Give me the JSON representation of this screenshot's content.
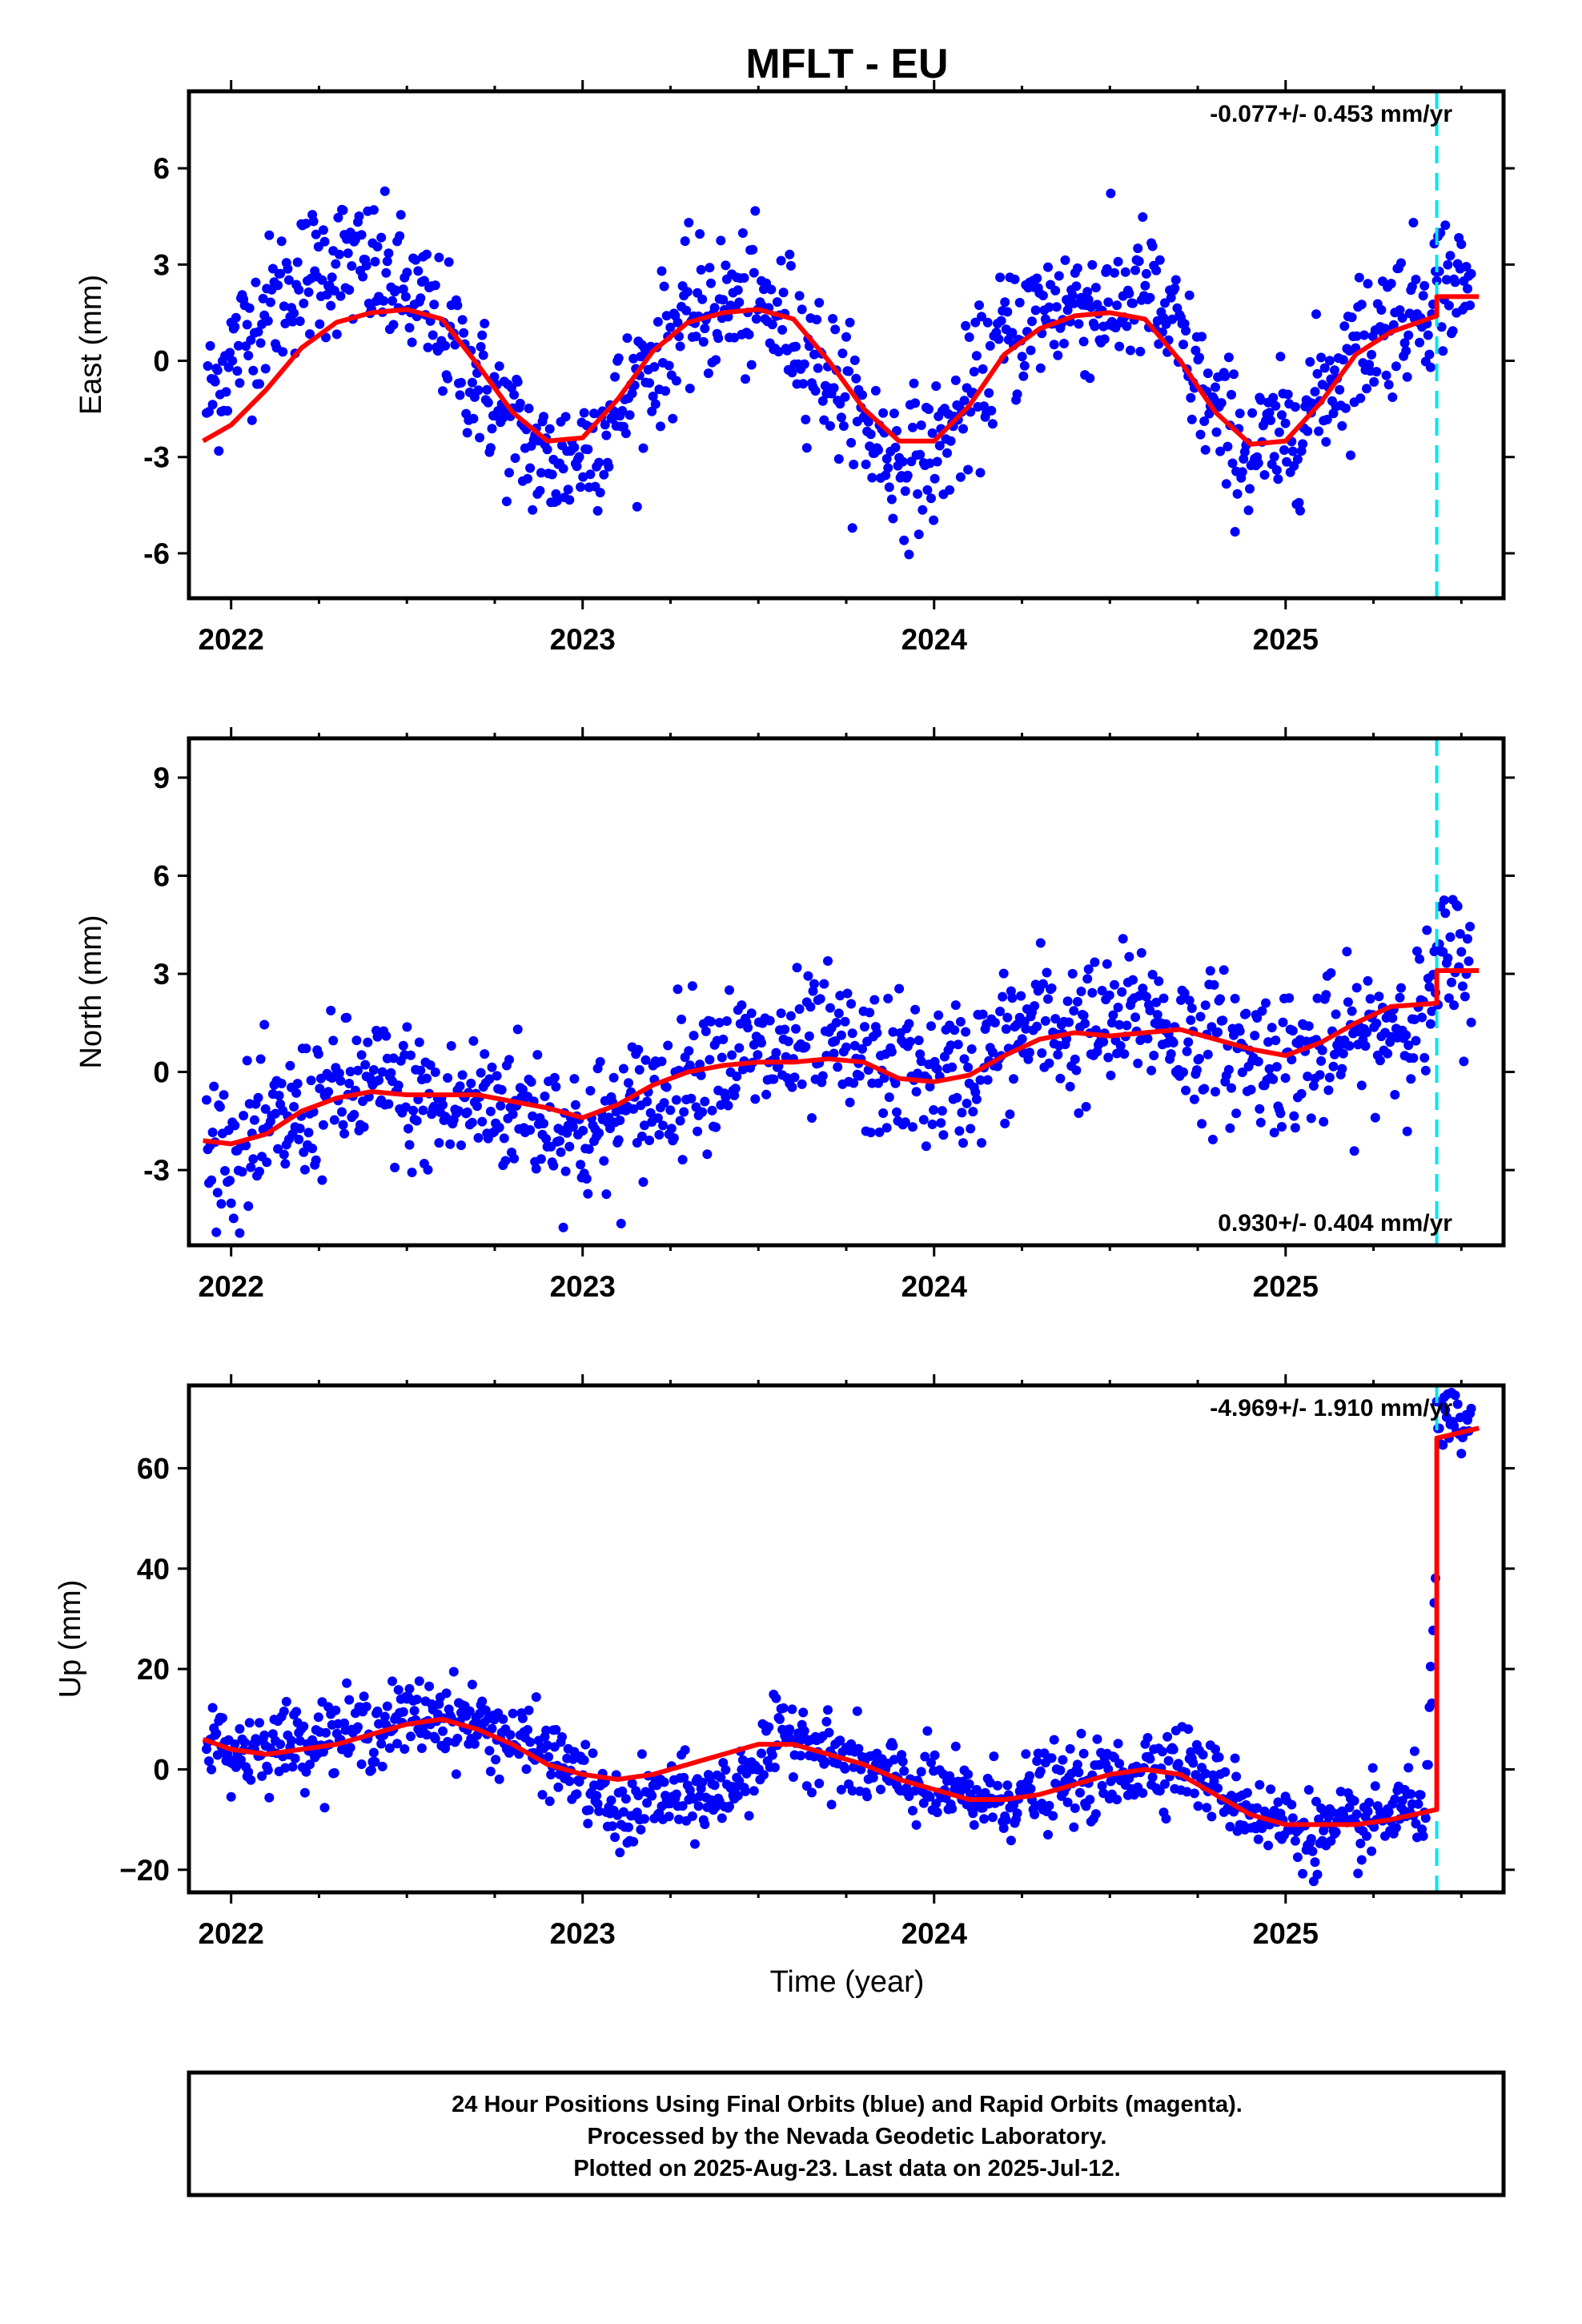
{
  "title": "MFLT - EU",
  "xlabel": "Time (year)",
  "caption": {
    "line1": "24 Hour Positions Using Final Orbits (blue) and Rapid Orbits (magenta).",
    "line2": "Processed by the Nevada Geodetic Laboratory.",
    "line3": "Plotted on 2025-Aug-23. Last data on 2025-Jul-12."
  },
  "colors": {
    "points": "#0000ff",
    "fit": "#ff0000",
    "event_line": "#00e5ee",
    "frame": "#000000"
  },
  "chart_data": [
    {
      "type": "scatter",
      "ylabel": "East (mm)",
      "rate_text": "-0.077+/- 0.453 mm/yr",
      "rate_position": "top-right",
      "xlim": [
        2021.88,
        2025.62
      ],
      "ylim": [
        -7.4,
        8.4
      ],
      "xticks": [
        "2022",
        "2023",
        "2024",
        "2025"
      ],
      "yticks": [
        "-6",
        "-3",
        "0",
        "3",
        "6"
      ],
      "ytick_values": [
        -6,
        -3,
        0,
        3,
        6
      ],
      "event_x": 2025.43,
      "series": [
        {
          "kind": "points",
          "x": [
            2021.92,
            2022.0,
            2022.1,
            2022.2,
            2022.3,
            2022.4,
            2022.5,
            2022.6,
            2022.7,
            2022.8,
            2022.9,
            2023.0,
            2023.1,
            2023.2,
            2023.3,
            2023.4,
            2023.5,
            2023.6,
            2023.7,
            2023.8,
            2023.9,
            2024.0,
            2024.1,
            2024.2,
            2024.3,
            2024.4,
            2024.5,
            2024.6,
            2024.7,
            2024.8,
            2024.9,
            2025.0,
            2025.1,
            2025.2,
            2025.3,
            2025.4,
            2025.45,
            2025.5
          ],
          "y": [
            -1.5,
            0.2,
            1.6,
            2.6,
            3.1,
            2.8,
            2.1,
            1.0,
            -0.6,
            -2.1,
            -3.3,
            -2.8,
            -1.6,
            0.0,
            1.3,
            1.8,
            1.6,
            1.0,
            -0.4,
            -2.0,
            -3.2,
            -3.0,
            -1.3,
            0.7,
            1.5,
            1.9,
            1.6,
            2.2,
            0.6,
            -1.8,
            -2.9,
            -2.5,
            -1.0,
            0.4,
            1.3,
            1.9,
            2.6,
            2.2
          ]
        },
        {
          "kind": "fit",
          "x": [
            2021.92,
            2022.0,
            2022.1,
            2022.2,
            2022.3,
            2022.4,
            2022.5,
            2022.6,
            2022.7,
            2022.8,
            2022.9,
            2023.0,
            2023.1,
            2023.2,
            2023.3,
            2023.4,
            2023.5,
            2023.6,
            2023.7,
            2023.8,
            2023.9,
            2024.0,
            2024.1,
            2024.2,
            2024.3,
            2024.4,
            2024.5,
            2024.6,
            2024.7,
            2024.8,
            2024.9,
            2025.0,
            2025.1,
            2025.2,
            2025.3,
            2025.43,
            2025.43,
            2025.55
          ],
          "y": [
            -2.5,
            -2.0,
            -0.9,
            0.4,
            1.2,
            1.5,
            1.6,
            1.3,
            -0.1,
            -1.6,
            -2.5,
            -2.4,
            -1.2,
            0.3,
            1.2,
            1.5,
            1.6,
            1.3,
            0.0,
            -1.5,
            -2.5,
            -2.5,
            -1.4,
            0.2,
            1.0,
            1.4,
            1.5,
            1.3,
            0.0,
            -1.6,
            -2.6,
            -2.5,
            -1.3,
            0.2,
            0.9,
            1.4,
            2.0,
            2.0
          ]
        }
      ]
    },
    {
      "type": "scatter",
      "ylabel": "North (mm)",
      "rate_text": "0.930+/- 0.404 mm/yr",
      "rate_position": "bottom-right",
      "xlim": [
        2021.88,
        2025.62
      ],
      "ylim": [
        -5.3,
        10.2
      ],
      "xticks": [
        "2022",
        "2023",
        "2024",
        "2025"
      ],
      "yticks": [
        "-3",
        "0",
        "3",
        "6",
        "9"
      ],
      "ytick_values": [
        -3,
        0,
        3,
        6,
        9
      ],
      "event_x": 2025.43,
      "series": [
        {
          "kind": "points",
          "x": [
            2021.92,
            2022.0,
            2022.1,
            2022.2,
            2022.3,
            2022.4,
            2022.5,
            2022.6,
            2022.7,
            2022.8,
            2022.9,
            2023.0,
            2023.1,
            2023.2,
            2023.3,
            2023.4,
            2023.5,
            2023.6,
            2023.7,
            2023.8,
            2023.9,
            2024.0,
            2024.1,
            2024.2,
            2024.3,
            2024.4,
            2024.5,
            2024.6,
            2024.7,
            2024.8,
            2024.9,
            2025.0,
            2025.1,
            2025.2,
            2025.3,
            2025.4,
            2025.45,
            2025.5
          ],
          "y": [
            -2.0,
            -2.5,
            -2.0,
            -1.2,
            -0.6,
            -0.5,
            -0.7,
            -1.2,
            -0.9,
            -1.0,
            -1.3,
            -2.0,
            -1.5,
            -0.8,
            0.2,
            0.5,
            0.4,
            0.6,
            0.8,
            0.2,
            0.1,
            -0.2,
            0.0,
            0.8,
            1.6,
            1.2,
            1.3,
            2.0,
            1.0,
            0.8,
            0.6,
            0.4,
            0.5,
            0.9,
            1.5,
            1.8,
            3.5,
            3.2
          ]
        },
        {
          "kind": "fit",
          "x": [
            2021.92,
            2022.0,
            2022.1,
            2022.2,
            2022.3,
            2022.4,
            2022.5,
            2022.6,
            2022.7,
            2022.8,
            2022.9,
            2023.0,
            2023.1,
            2023.2,
            2023.3,
            2023.4,
            2023.5,
            2023.6,
            2023.7,
            2023.8,
            2023.9,
            2024.0,
            2024.1,
            2024.2,
            2024.3,
            2024.4,
            2024.5,
            2024.6,
            2024.7,
            2024.8,
            2024.9,
            2025.0,
            2025.1,
            2025.2,
            2025.3,
            2025.43,
            2025.43,
            2025.55
          ],
          "y": [
            -2.1,
            -2.2,
            -1.9,
            -1.2,
            -0.8,
            -0.6,
            -0.7,
            -0.7,
            -0.7,
            -0.9,
            -1.1,
            -1.4,
            -1.0,
            -0.4,
            0.0,
            0.2,
            0.3,
            0.3,
            0.4,
            0.3,
            -0.2,
            -0.3,
            -0.1,
            0.5,
            1.0,
            1.2,
            1.1,
            1.2,
            1.3,
            1.0,
            0.7,
            0.5,
            0.9,
            1.5,
            2.0,
            2.1,
            3.1,
            3.1
          ]
        }
      ]
    },
    {
      "type": "scatter",
      "ylabel": "Up (mm)",
      "rate_text": "-4.969+/- 1.910 mm/yr",
      "rate_position": "top-right",
      "xlim": [
        2021.88,
        2025.62
      ],
      "ylim": [
        -24.5,
        76.5
      ],
      "xticks": [
        "2022",
        "2023",
        "2024",
        "2025"
      ],
      "yticks": [
        "−20",
        "0",
        "20",
        "40",
        "60"
      ],
      "ytick_values": [
        -20,
        0,
        20,
        40,
        60
      ],
      "event_x": 2025.43,
      "series": [
        {
          "kind": "points",
          "x": [
            2021.92,
            2022.0,
            2022.1,
            2022.2,
            2022.3,
            2022.4,
            2022.5,
            2022.6,
            2022.7,
            2022.8,
            2022.9,
            2023.0,
            2023.1,
            2023.2,
            2023.3,
            2023.4,
            2023.5,
            2023.6,
            2023.7,
            2023.8,
            2023.9,
            2024.0,
            2024.1,
            2024.2,
            2024.3,
            2024.4,
            2024.5,
            2024.6,
            2024.7,
            2024.8,
            2024.9,
            2025.0,
            2025.1,
            2025.2,
            2025.3,
            2025.4,
            2025.45,
            2025.5
          ],
          "y": [
            8,
            3,
            5,
            6,
            7,
            8,
            10,
            11,
            9,
            6,
            3,
            -2,
            -10,
            -6,
            -6,
            -5,
            2,
            8,
            3,
            0,
            -2,
            -4,
            -6,
            -6,
            -4,
            -3,
            -2,
            1,
            2,
            -3,
            -8,
            -11,
            -13,
            -12,
            -9,
            -6,
            68,
            70
          ]
        },
        {
          "kind": "fit",
          "x": [
            2021.92,
            2022.0,
            2022.1,
            2022.2,
            2022.3,
            2022.4,
            2022.5,
            2022.6,
            2022.7,
            2022.8,
            2022.9,
            2023.0,
            2023.1,
            2023.2,
            2023.3,
            2023.4,
            2023.5,
            2023.6,
            2023.7,
            2023.8,
            2023.9,
            2024.0,
            2024.1,
            2024.2,
            2024.3,
            2024.4,
            2024.5,
            2024.6,
            2024.7,
            2024.8,
            2024.9,
            2025.0,
            2025.1,
            2025.2,
            2025.3,
            2025.43,
            2025.43,
            2025.55
          ],
          "y": [
            6,
            4,
            3,
            4,
            5,
            7,
            9,
            10,
            8,
            5,
            1,
            -1,
            -2,
            -1,
            1,
            3,
            5,
            5,
            3,
            1,
            -2,
            -4,
            -6,
            -6,
            -5,
            -3,
            -1,
            0,
            -1,
            -5,
            -9,
            -11,
            -11,
            -11,
            -10,
            -8,
            66,
            68
          ]
        }
      ]
    }
  ]
}
